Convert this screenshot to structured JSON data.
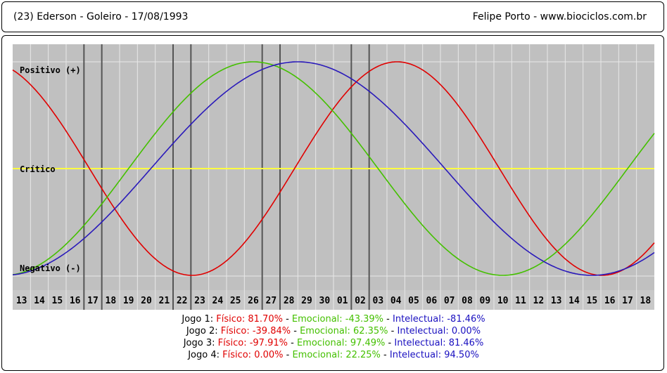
{
  "header": {
    "left": "(23)  Ederson - Goleiro -  17/08/1993",
    "right": "Felipe Porto   -   www.biociclos.com.br"
  },
  "chart_data": {
    "type": "line",
    "title": "",
    "x_ticks": [
      "13",
      "14",
      "15",
      "16",
      "17",
      "18",
      "19",
      "20",
      "21",
      "22",
      "23",
      "24",
      "25",
      "26",
      "27",
      "28",
      "29",
      "30",
      "01",
      "02",
      "03",
      "04",
      "05",
      "06",
      "07",
      "08",
      "09",
      "10",
      "11",
      "12",
      "13",
      "14",
      "15",
      "16",
      "17",
      "18"
    ],
    "y_labels": {
      "positive": "Positivo (+)",
      "critical": "Crítico",
      "negative": "Negativo (-)"
    },
    "ylim": [
      -100,
      100
    ],
    "series": [
      {
        "name": "Físico",
        "color": "#e00000",
        "period": 23,
        "start_index": 0,
        "start_value": 86.3
      },
      {
        "name": "Emocional",
        "color": "#44c000",
        "period": 28,
        "start_index": 0,
        "start_value": -97.5
      },
      {
        "name": "Intelectual",
        "color": "#2a1aba",
        "period": 33,
        "start_index": 0,
        "start_value": -98.2
      }
    ],
    "critical_color": "#ffff40",
    "game_markers": [
      {
        "after_tick": "16"
      },
      {
        "after_tick": "17"
      },
      {
        "after_tick": "21"
      },
      {
        "after_tick": "22"
      },
      {
        "after_tick": "26"
      },
      {
        "after_tick": "27"
      },
      {
        "after_tick": "01"
      },
      {
        "after_tick": "02"
      }
    ]
  },
  "legend": [
    {
      "label": "Jogo 1:",
      "fisico": "Físico: 81.70%",
      "emocional": "Emocional: -43.39%",
      "intelectual": "Intelectual: -81.46%"
    },
    {
      "label": "Jogo 2:",
      "fisico": "Físico: -39.84%",
      "emocional": "Emocional: 62.35%",
      "intelectual": "Intelectual: 0.00%"
    },
    {
      "label": "Jogo 3:",
      "fisico": "Físico: -97.91%",
      "emocional": "Emocional: 97.49%",
      "intelectual": "Intelectual: 81.46%"
    },
    {
      "label": "Jogo 4:",
      "fisico": "Físico: 0.00%",
      "emocional": "Emocional: 22.25%",
      "intelectual": "Intelectual: 94.50%"
    }
  ]
}
